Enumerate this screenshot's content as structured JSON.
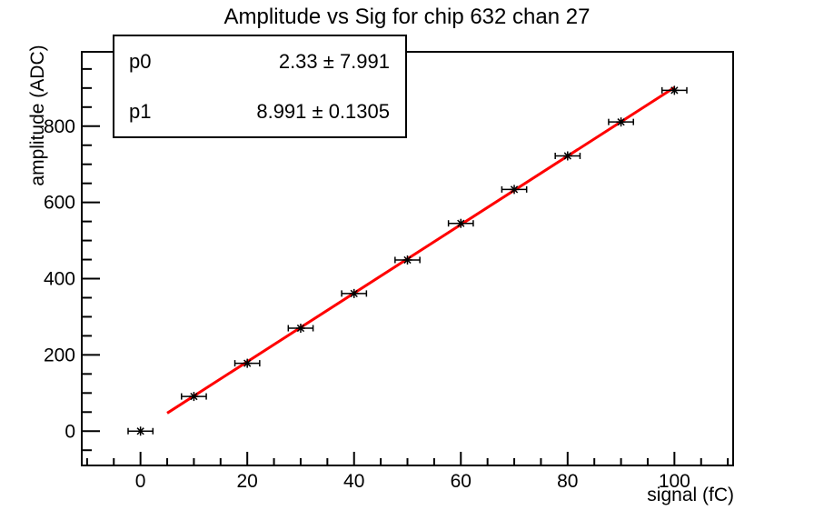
{
  "title": "Amplitude vs Sig for chip 632 chan 27",
  "stats_box": {
    "rows": [
      {
        "name": "p0",
        "value": "2.33 ± 7.991"
      },
      {
        "name": "p1",
        "value": "8.991 ± 0.1305"
      }
    ]
  },
  "chart_data": {
    "type": "scatter",
    "title": "Amplitude vs Sig for chip 632 chan 27",
    "xlabel": "signal (fC)",
    "ylabel": "amplitude (ADC)",
    "x": [
      0,
      10,
      20,
      30,
      40,
      50,
      60,
      70,
      80,
      90,
      100
    ],
    "y": [
      0,
      91,
      178,
      270,
      361,
      449,
      545,
      634,
      722,
      811,
      894
    ],
    "x_err": 1.3,
    "fit": {
      "p0": 2.33,
      "p0_err": 7.991,
      "p1": 8.991,
      "p1_err": 0.1305,
      "x_start": 5,
      "x_end": 100,
      "color": "#ff0000"
    },
    "xlim": [
      -11,
      111
    ],
    "ylim": [
      -90,
      995
    ],
    "x_major_ticks": [
      0,
      20,
      40,
      60,
      80,
      100
    ],
    "x_minor_step": 5,
    "y_major_ticks": [
      0,
      200,
      400,
      600,
      800
    ],
    "y_minor_step": 50,
    "marker": "asterisk-with-x-error-bars",
    "marker_color": "#000000",
    "axis_color": "#000000",
    "background": "#ffffff",
    "grid": false,
    "legend_position": "none"
  }
}
